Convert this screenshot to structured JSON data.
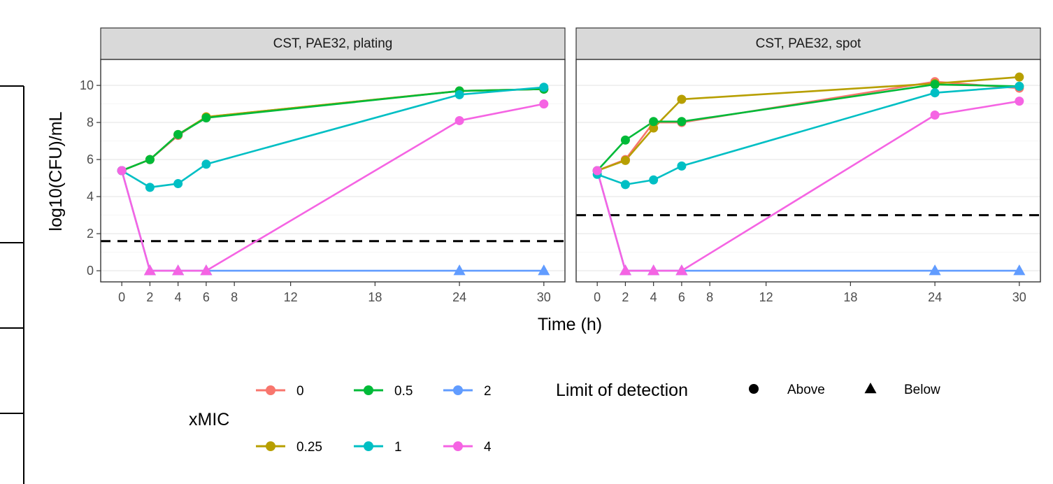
{
  "chart_data": {
    "type": "line",
    "xlabel": "Time (h)",
    "ylabel": "log10(CFU)/mL",
    "x_ticks": [
      0,
      2,
      4,
      6,
      8,
      12,
      18,
      24,
      30
    ],
    "y_ticks": [
      0,
      2,
      4,
      6,
      8,
      10
    ],
    "xlim": [
      -1.5,
      31.5
    ],
    "ylim": [
      -0.6,
      11.4
    ],
    "grid": true,
    "legend_position": "bottom",
    "legend": {
      "color_title": "xMIC",
      "shape_title": "Limit of detection",
      "color_entries": [
        {
          "label": "0",
          "color": "#F8766D"
        },
        {
          "label": "0.25",
          "color": "#B79F00"
        },
        {
          "label": "0.5",
          "color": "#00BA38"
        },
        {
          "label": "1",
          "color": "#00BFC4"
        },
        {
          "label": "2",
          "color": "#619CFF"
        },
        {
          "label": "4",
          "color": "#F564E3"
        }
      ],
      "shape_entries": [
        {
          "label": "Above",
          "shape": "circle"
        },
        {
          "label": "Below",
          "shape": "triangle"
        }
      ]
    },
    "panels": [
      {
        "strip": "CST, PAE32, plating",
        "lod": 1.6,
        "series": [
          {
            "name": "0",
            "color": "#F8766D",
            "points": [
              [
                0,
                5.4,
                "Above"
              ],
              [
                2,
                6.0,
                "Above"
              ],
              [
                4,
                7.3,
                "Above"
              ],
              [
                6,
                8.3,
                "Above"
              ],
              [
                24,
                9.7,
                "Above"
              ],
              [
                30,
                9.8,
                "Above"
              ]
            ]
          },
          {
            "name": "0.25",
            "color": "#B79F00",
            "points": [
              [
                0,
                5.4,
                "Above"
              ],
              [
                2,
                6.0,
                "Above"
              ],
              [
                4,
                7.35,
                "Above"
              ],
              [
                6,
                8.3,
                "Above"
              ],
              [
                24,
                9.7,
                "Above"
              ],
              [
                30,
                9.8,
                "Above"
              ]
            ]
          },
          {
            "name": "0.5",
            "color": "#00BA38",
            "points": [
              [
                0,
                5.4,
                "Above"
              ],
              [
                2,
                6.0,
                "Above"
              ],
              [
                4,
                7.35,
                "Above"
              ],
              [
                6,
                8.25,
                "Above"
              ],
              [
                24,
                9.7,
                "Above"
              ],
              [
                30,
                9.8,
                "Above"
              ]
            ]
          },
          {
            "name": "1",
            "color": "#00BFC4",
            "points": [
              [
                0,
                5.4,
                "Above"
              ],
              [
                2,
                4.5,
                "Above"
              ],
              [
                4,
                4.7,
                "Above"
              ],
              [
                6,
                5.75,
                "Above"
              ],
              [
                24,
                9.5,
                "Above"
              ],
              [
                30,
                9.9,
                "Above"
              ]
            ]
          },
          {
            "name": "2",
            "color": "#619CFF",
            "points": [
              [
                0,
                5.4,
                "Above"
              ],
              [
                2,
                0,
                "Below"
              ],
              [
                4,
                0,
                "Below"
              ],
              [
                6,
                0,
                "Below"
              ],
              [
                24,
                0,
                "Below"
              ],
              [
                30,
                0,
                "Below"
              ]
            ]
          },
          {
            "name": "4",
            "color": "#F564E3",
            "points": [
              [
                0,
                5.4,
                "Above"
              ],
              [
                2,
                0,
                "Below"
              ],
              [
                4,
                0,
                "Below"
              ],
              [
                6,
                0,
                "Below"
              ],
              [
                24,
                8.1,
                "Above"
              ],
              [
                30,
                9.0,
                "Above"
              ]
            ]
          }
        ]
      },
      {
        "strip": "CST, PAE32, spot",
        "lod": 3.0,
        "series": [
          {
            "name": "0",
            "color": "#F8766D",
            "points": [
              [
                0,
                5.4,
                "Above"
              ],
              [
                2,
                6.0,
                "Above"
              ],
              [
                4,
                8.0,
                "Above"
              ],
              [
                6,
                8.0,
                "Above"
              ],
              [
                24,
                10.2,
                "Above"
              ],
              [
                30,
                9.85,
                "Above"
              ]
            ]
          },
          {
            "name": "0.25",
            "color": "#B79F00",
            "points": [
              [
                0,
                5.4,
                "Above"
              ],
              [
                2,
                5.95,
                "Above"
              ],
              [
                4,
                7.7,
                "Above"
              ],
              [
                6,
                9.25,
                "Above"
              ],
              [
                24,
                10.1,
                "Above"
              ],
              [
                30,
                10.45,
                "Above"
              ]
            ]
          },
          {
            "name": "0.5",
            "color": "#00BA38",
            "points": [
              [
                0,
                5.4,
                "Above"
              ],
              [
                2,
                7.05,
                "Above"
              ],
              [
                4,
                8.05,
                "Above"
              ],
              [
                6,
                8.05,
                "Above"
              ],
              [
                24,
                10.05,
                "Above"
              ],
              [
                30,
                9.95,
                "Above"
              ]
            ]
          },
          {
            "name": "1",
            "color": "#00BFC4",
            "points": [
              [
                0,
                5.2,
                "Above"
              ],
              [
                2,
                4.65,
                "Above"
              ],
              [
                4,
                4.9,
                "Above"
              ],
              [
                6,
                5.65,
                "Above"
              ],
              [
                24,
                9.6,
                "Above"
              ],
              [
                30,
                9.95,
                "Above"
              ]
            ]
          },
          {
            "name": "2",
            "color": "#619CFF",
            "points": [
              [
                0,
                5.4,
                "Above"
              ],
              [
                2,
                0,
                "Below"
              ],
              [
                4,
                0,
                "Below"
              ],
              [
                6,
                0,
                "Below"
              ],
              [
                24,
                0,
                "Below"
              ],
              [
                30,
                0,
                "Below"
              ]
            ]
          },
          {
            "name": "4",
            "color": "#F564E3",
            "points": [
              [
                0,
                5.4,
                "Above"
              ],
              [
                2,
                0,
                "Below"
              ],
              [
                4,
                0,
                "Below"
              ],
              [
                6,
                0,
                "Below"
              ],
              [
                24,
                8.4,
                "Above"
              ],
              [
                30,
                9.15,
                "Above"
              ]
            ]
          }
        ]
      }
    ]
  }
}
